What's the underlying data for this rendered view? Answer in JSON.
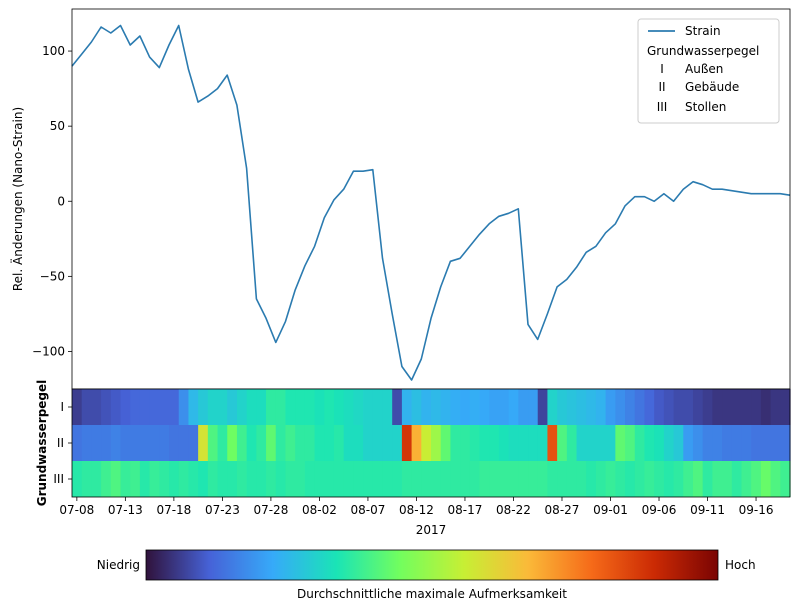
{
  "chart_data": [
    {
      "type": "line",
      "ylabel": "Rel. Änderungen (Nano-Strain)",
      "ylim": [
        -125,
        128
      ],
      "xlim": [
        -0.5,
        73.5
      ],
      "yticks": [
        100,
        50,
        0,
        -50,
        -100
      ],
      "yticklabels": [
        "100",
        "50",
        "0",
        "−50",
        "−100"
      ],
      "grid": false,
      "line_color": "#2b7bb0",
      "series": [
        {
          "name": "Strain",
          "x": [
            -0.5,
            0.5,
            1.5,
            2.5,
            3.5,
            4.5,
            5.5,
            6.5,
            7.5,
            8.5,
            9.5,
            10.5,
            11.5,
            12.5,
            13.5,
            14.5,
            15.5,
            16.5,
            17.5,
            18.5,
            19.5,
            20.5,
            21.5,
            22.5,
            23.5,
            24.5,
            25.5,
            26.5,
            27.5,
            28.5,
            29.5,
            30.5,
            31.5,
            32.5,
            33.5,
            34.5,
            35.5,
            36.5,
            37.5,
            38.5,
            39.5,
            40.5,
            41.5,
            42.5,
            43.5,
            44.5,
            45.5,
            46.5,
            47.5,
            48.5,
            49.5,
            50.5,
            51.5,
            52.5,
            53.5,
            54.5,
            55.5,
            56.5,
            57.5,
            58.5,
            59.5,
            60.5,
            61.5,
            62.5,
            63.5,
            64.5,
            65.5,
            66.5,
            67.5,
            68.5,
            69.5,
            70.5,
            71.5,
            72.5,
            73.5
          ],
          "values": [
            90,
            98,
            106,
            116,
            112,
            117,
            104,
            110,
            96,
            89,
            104,
            117,
            88,
            66,
            70,
            75,
            84,
            64,
            22,
            -65,
            -78,
            -94,
            -80,
            -59,
            -43,
            -30,
            -11,
            1,
            8,
            20,
            20,
            21,
            -38,
            -75,
            -110,
            -119,
            -105,
            -78,
            -57,
            -40,
            -38,
            -30,
            -22,
            -15,
            -10,
            -8,
            -5,
            -82,
            -92,
            -75,
            -57,
            -52,
            -44,
            -34,
            -30,
            -21,
            -15,
            -3,
            3,
            3,
            0,
            5,
            0,
            8,
            13,
            11,
            8,
            8,
            7,
            6,
            5,
            5,
            5,
            5,
            4
          ]
        }
      ],
      "legend": {
        "position": "top-right",
        "series_label": "Strain",
        "title": "Grundwasserpegel",
        "entries": [
          {
            "key": "I",
            "label": "Außen"
          },
          {
            "key": "II",
            "label": "Gebäude"
          },
          {
            "key": "III",
            "label": "Stollen"
          }
        ]
      }
    },
    {
      "type": "heatmap",
      "ylabel": "Grundwasserpegel",
      "rows": [
        "I",
        "II",
        "III"
      ],
      "xlabel": "2017",
      "xlim": [
        -0.5,
        73.5
      ],
      "xticks": [
        0,
        5,
        10,
        15,
        20,
        25,
        30,
        35,
        40,
        45,
        50,
        55,
        60,
        65,
        70
      ],
      "xticklabels": [
        "07-08",
        "07-13",
        "07-18",
        "07-23",
        "07-28",
        "08-02",
        "08-07",
        "08-12",
        "08-17",
        "08-22",
        "08-27",
        "09-01",
        "09-06",
        "09-11",
        "09-16"
      ],
      "value_range": [
        0,
        1
      ],
      "values": [
        [
          0.06,
          0.08,
          0.08,
          0.09,
          0.1,
          0.11,
          0.12,
          0.12,
          0.12,
          0.12,
          0.12,
          0.18,
          0.25,
          0.28,
          0.3,
          0.3,
          0.28,
          0.3,
          0.32,
          0.32,
          0.36,
          0.36,
          0.34,
          0.34,
          0.34,
          0.33,
          0.34,
          0.33,
          0.32,
          0.31,
          0.3,
          0.3,
          0.3,
          0.08,
          0.24,
          0.26,
          0.24,
          0.25,
          0.24,
          0.23,
          0.22,
          0.23,
          0.22,
          0.21,
          0.21,
          0.22,
          0.2,
          0.2,
          0.07,
          0.3,
          0.28,
          0.27,
          0.26,
          0.25,
          0.24,
          0.2,
          0.18,
          0.16,
          0.14,
          0.12,
          0.1,
          0.09,
          0.08,
          0.08,
          0.07,
          0.06,
          0.05,
          0.05,
          0.05,
          0.05,
          0.05,
          0.04,
          0.05,
          0.05
        ],
        [
          0.14,
          0.15,
          0.15,
          0.15,
          0.16,
          0.15,
          0.15,
          0.15,
          0.15,
          0.15,
          0.14,
          0.14,
          0.14,
          0.58,
          0.4,
          0.36,
          0.44,
          0.38,
          0.34,
          0.36,
          0.42,
          0.36,
          0.38,
          0.36,
          0.36,
          0.34,
          0.34,
          0.35,
          0.32,
          0.32,
          0.3,
          0.3,
          0.3,
          0.3,
          0.87,
          0.68,
          0.56,
          0.5,
          0.42,
          0.36,
          0.36,
          0.35,
          0.34,
          0.34,
          0.33,
          0.32,
          0.32,
          0.32,
          0.32,
          0.82,
          0.4,
          0.36,
          0.3,
          0.3,
          0.3,
          0.3,
          0.42,
          0.4,
          0.36,
          0.34,
          0.33,
          0.3,
          0.28,
          0.2,
          0.18,
          0.16,
          0.16,
          0.15,
          0.15,
          0.15,
          0.14,
          0.14,
          0.14,
          0.14
        ],
        [
          0.35,
          0.36,
          0.36,
          0.38,
          0.4,
          0.37,
          0.38,
          0.35,
          0.37,
          0.36,
          0.35,
          0.36,
          0.35,
          0.34,
          0.36,
          0.35,
          0.35,
          0.36,
          0.35,
          0.35,
          0.36,
          0.35,
          0.36,
          0.36,
          0.35,
          0.35,
          0.35,
          0.35,
          0.35,
          0.35,
          0.35,
          0.35,
          0.35,
          0.35,
          0.36,
          0.36,
          0.36,
          0.36,
          0.36,
          0.36,
          0.36,
          0.36,
          0.37,
          0.37,
          0.37,
          0.37,
          0.37,
          0.37,
          0.37,
          0.36,
          0.36,
          0.36,
          0.36,
          0.35,
          0.36,
          0.37,
          0.36,
          0.35,
          0.36,
          0.37,
          0.36,
          0.35,
          0.36,
          0.38,
          0.4,
          0.36,
          0.38,
          0.38,
          0.36,
          0.38,
          0.4,
          0.43,
          0.4,
          0.38
        ]
      ]
    }
  ],
  "colorbar": {
    "low_label": "Niedrig",
    "high_label": "Hoch",
    "label": "Durchschnittliche maximale Aufmerksamkeit",
    "colormap": [
      "#30123b",
      "#4662d7",
      "#36aaf9",
      "#1ae4b6",
      "#72fe5e",
      "#c7ef34",
      "#faba39",
      "#f66b19",
      "#cb2a04",
      "#7a0403"
    ]
  }
}
